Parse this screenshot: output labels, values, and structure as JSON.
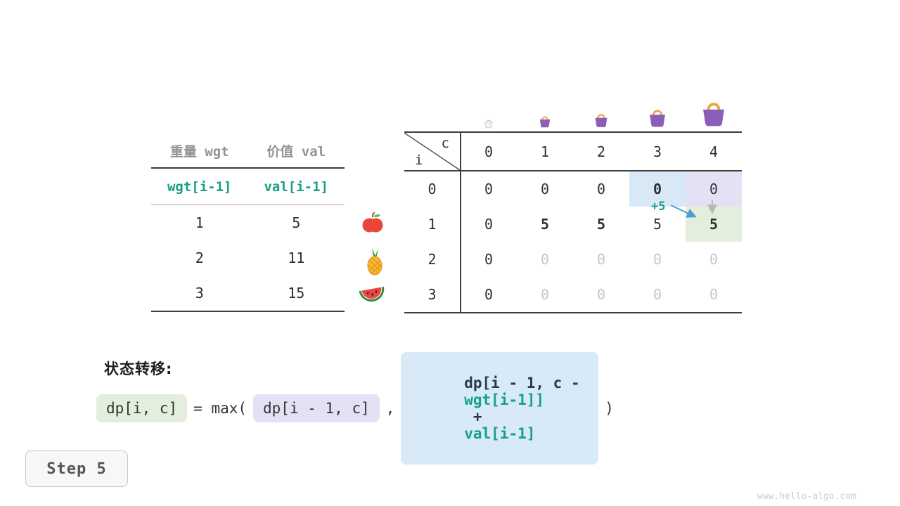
{
  "colors": {
    "green": "#16a085",
    "arrow_blue": "#4a9fd4",
    "highlight_blue": "#d8e8f7",
    "highlight_purple": "#e4e1f5",
    "highlight_green": "#e3efdc",
    "gray_zero": "#c6c6c6"
  },
  "left_table": {
    "col1_header": "重量 wgt",
    "col2_header": "价值 val",
    "formula_row": {
      "wgt": "wgt[i-1]",
      "val": "val[i-1]"
    },
    "rows": [
      {
        "wgt": "1",
        "val": "5",
        "fruit": "apple"
      },
      {
        "wgt": "2",
        "val": "11",
        "fruit": "pineapple"
      },
      {
        "wgt": "3",
        "val": "15",
        "fruit": "watermelon"
      }
    ]
  },
  "dp_table": {
    "corner_col_label": "c",
    "corner_row_label": "i",
    "col_headers": [
      "0",
      "1",
      "2",
      "3",
      "4"
    ],
    "row_headers": [
      "0",
      "1",
      "2",
      "3"
    ],
    "cells": [
      [
        {
          "t": "0"
        },
        {
          "t": "0"
        },
        {
          "t": "0"
        },
        {
          "t": "0",
          "bold": true,
          "bg": "blue"
        },
        {
          "t": "0",
          "bg": "purple"
        }
      ],
      [
        {
          "t": "0"
        },
        {
          "t": "5",
          "bold": true
        },
        {
          "t": "5",
          "bold": true
        },
        {
          "t": "5"
        },
        {
          "t": "5",
          "bold": true,
          "bg": "green"
        }
      ],
      [
        {
          "t": "0"
        },
        {
          "t": "0",
          "gray": true
        },
        {
          "t": "0",
          "gray": true
        },
        {
          "t": "0",
          "gray": true
        },
        {
          "t": "0",
          "gray": true
        }
      ],
      [
        {
          "t": "0"
        },
        {
          "t": "0",
          "gray": true
        },
        {
          "t": "0",
          "gray": true
        },
        {
          "t": "0",
          "gray": true
        },
        {
          "t": "0",
          "gray": true
        }
      ]
    ],
    "annotation": "+5",
    "bags": [
      "capacity-0",
      "capacity-1",
      "capacity-2",
      "capacity-3",
      "capacity-4"
    ]
  },
  "transition": {
    "label": "状态转移:",
    "lhs": "dp[i, c]",
    "equals": "= max(",
    "arg1": "dp[i - 1, c]",
    "comma": ",",
    "arg2_prefix": "dp[i - 1, c - ",
    "arg2_wgt": "wgt[i-1]]",
    "arg2_plus": " + ",
    "arg2_val": "val[i-1]",
    "close": ")"
  },
  "step": {
    "label": "Step 5"
  },
  "watermark": "www.hello-algo.com"
}
